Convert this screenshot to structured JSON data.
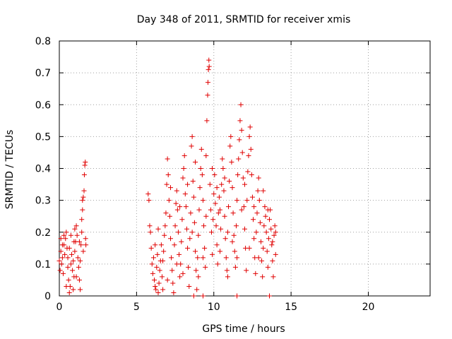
{
  "chart_data": {
    "type": "scatter",
    "title": "Day 348 of 2011, SRMTID for receiver xmis",
    "xlabel": "GPS time / hours",
    "ylabel": "SRMTID / TECUs",
    "xlim": [
      0,
      24
    ],
    "ylim": [
      0,
      0.8
    ],
    "x_ticks": [
      "0",
      "5",
      "10",
      "15",
      "20"
    ],
    "y_ticks": [
      "0",
      "0.1",
      "0.2",
      "0.3",
      "0.4",
      "0.5",
      "0.6",
      "0.7",
      "0.8"
    ],
    "grid": true,
    "marker": "+",
    "color": "#e00000",
    "series": [
      {
        "points": [
          [
            0.0,
            0.11
          ],
          [
            0.05,
            0.08
          ],
          [
            0.1,
            0.14
          ],
          [
            0.15,
            0.1
          ],
          [
            0.2,
            0.12
          ],
          [
            0.25,
            0.07
          ],
          [
            0.3,
            0.16
          ],
          [
            0.35,
            0.13
          ],
          [
            0.4,
            0.18
          ],
          [
            0.45,
            0.2
          ],
          [
            0.5,
            0.15
          ],
          [
            0.55,
            0.12
          ],
          [
            0.6,
            0.05
          ],
          [
            0.65,
            0.01
          ],
          [
            0.7,
            0.03
          ],
          [
            0.75,
            0.1
          ],
          [
            0.8,
            0.13
          ],
          [
            0.85,
            0.08
          ],
          [
            0.9,
            0.11
          ],
          [
            0.95,
            0.06
          ],
          [
            1.0,
            0.14
          ],
          [
            1.05,
            0.17
          ],
          [
            1.1,
            0.22
          ],
          [
            1.15,
            0.19
          ],
          [
            1.2,
            0.12
          ],
          [
            1.25,
            0.09
          ],
          [
            1.3,
            0.05
          ],
          [
            1.35,
            0.02
          ],
          [
            1.4,
            0.16
          ],
          [
            1.45,
            0.2
          ],
          [
            1.5,
            0.27
          ],
          [
            1.55,
            0.31
          ],
          [
            1.6,
            0.33
          ],
          [
            1.62,
            0.38
          ],
          [
            1.65,
            0.41
          ],
          [
            1.68,
            0.42
          ],
          [
            1.7,
            0.18
          ],
          [
            1.72,
            0.16
          ],
          [
            0.1,
            0.18
          ],
          [
            0.3,
            0.19
          ],
          [
            0.55,
            0.09
          ],
          [
            0.75,
            0.19
          ],
          [
            1.1,
            0.06
          ],
          [
            1.3,
            0.17
          ],
          [
            1.5,
            0.3
          ],
          [
            0.2,
            0.16
          ],
          [
            0.45,
            0.03
          ],
          [
            0.9,
            0.02
          ],
          [
            1.0,
            0.21
          ],
          [
            1.45,
            0.24
          ],
          [
            1.55,
            0.14
          ],
          [
            0.65,
            0.15
          ],
          [
            0.95,
            0.17
          ],
          [
            1.35,
            0.11
          ],
          [
            5.75,
            0.32
          ],
          [
            5.8,
            0.3
          ],
          [
            5.85,
            0.22
          ],
          [
            5.9,
            0.2
          ],
          [
            5.95,
            0.15
          ],
          [
            6.0,
            0.1
          ],
          [
            6.05,
            0.07
          ],
          [
            6.1,
            0.12
          ],
          [
            6.15,
            0.05
          ],
          [
            6.2,
            0.03
          ],
          [
            6.25,
            0.02
          ],
          [
            6.3,
            0.09
          ],
          [
            6.35,
            0.13
          ],
          [
            6.4,
            0.01
          ],
          [
            6.45,
            0.04
          ],
          [
            6.5,
            0.08
          ],
          [
            6.55,
            0.11
          ],
          [
            6.6,
            0.16
          ],
          [
            6.65,
            0.06
          ],
          [
            6.7,
            0.02
          ],
          [
            6.75,
            0.14
          ],
          [
            6.8,
            0.19
          ],
          [
            6.85,
            0.22
          ],
          [
            6.9,
            0.26
          ],
          [
            6.95,
            0.35
          ],
          [
            7.0,
            0.43
          ],
          [
            7.05,
            0.38
          ],
          [
            7.1,
            0.3
          ],
          [
            7.15,
            0.25
          ],
          [
            7.2,
            0.18
          ],
          [
            7.25,
            0.12
          ],
          [
            7.3,
            0.08
          ],
          [
            7.35,
            0.04
          ],
          [
            7.4,
            0.01
          ],
          [
            7.45,
            0.16
          ],
          [
            7.5,
            0.22
          ],
          [
            7.55,
            0.29
          ],
          [
            7.6,
            0.33
          ],
          [
            7.65,
            0.27
          ],
          [
            7.7,
            0.2
          ],
          [
            7.75,
            0.13
          ],
          [
            7.8,
            0.06
          ],
          [
            7.85,
            0.1
          ],
          [
            7.9,
            0.17
          ],
          [
            7.95,
            0.24
          ],
          [
            8.0,
            0.37
          ],
          [
            8.05,
            0.4
          ],
          [
            8.1,
            0.44
          ],
          [
            8.15,
            0.32
          ],
          [
            8.2,
            0.28
          ],
          [
            8.25,
            0.21
          ],
          [
            8.3,
            0.15
          ],
          [
            8.35,
            0.09
          ],
          [
            8.4,
            0.03
          ],
          [
            8.45,
            0.18
          ],
          [
            8.5,
            0.26
          ],
          [
            8.55,
            0.47
          ],
          [
            8.6,
            0.5
          ],
          [
            8.65,
            0.36
          ],
          [
            8.7,
            0.31
          ],
          [
            8.75,
            0.23
          ],
          [
            8.8,
            0.14
          ],
          [
            8.85,
            0.08
          ],
          [
            8.9,
            0.02
          ],
          [
            8.95,
            0.12
          ],
          [
            9.0,
            0.19
          ],
          [
            9.05,
            0.27
          ],
          [
            9.1,
            0.34
          ],
          [
            9.15,
            0.4
          ],
          [
            9.2,
            0.46
          ],
          [
            9.25,
            0.38
          ],
          [
            9.3,
            0.3
          ],
          [
            9.35,
            0.22
          ],
          [
            9.4,
            0.15
          ],
          [
            9.45,
            0.09
          ],
          [
            9.5,
            0.44
          ],
          [
            9.55,
            0.55
          ],
          [
            9.6,
            0.63
          ],
          [
            9.62,
            0.67
          ],
          [
            9.65,
            0.71
          ],
          [
            9.68,
            0.74
          ],
          [
            9.7,
            0.72
          ],
          [
            9.75,
            0.35
          ],
          [
            9.8,
            0.27
          ],
          [
            9.85,
            0.2
          ],
          [
            9.9,
            0.13
          ],
          [
            9.95,
            0.24
          ],
          [
            10.0,
            0.32
          ],
          [
            10.05,
            0.38
          ],
          [
            10.1,
            0.29
          ],
          [
            10.15,
            0.22
          ],
          [
            10.2,
            0.16
          ],
          [
            10.25,
            0.1
          ],
          [
            10.3,
            0.26
          ],
          [
            10.35,
            0.31
          ],
          [
            10.4,
            0.27
          ],
          [
            10.45,
            0.21
          ],
          [
            10.5,
            0.35
          ],
          [
            10.55,
            0.43
          ],
          [
            10.6,
            0.4
          ],
          [
            10.65,
            0.33
          ],
          [
            10.7,
            0.25
          ],
          [
            10.75,
            0.18
          ],
          [
            10.8,
            0.12
          ],
          [
            10.85,
            0.08
          ],
          [
            10.9,
            0.2
          ],
          [
            10.95,
            0.28
          ],
          [
            11.0,
            0.36
          ],
          [
            11.05,
            0.47
          ],
          [
            11.1,
            0.5
          ],
          [
            11.15,
            0.42
          ],
          [
            11.2,
            0.34
          ],
          [
            11.25,
            0.26
          ],
          [
            11.3,
            0.19
          ],
          [
            11.35,
            0.14
          ],
          [
            11.4,
            0.09
          ],
          [
            11.45,
            0.22
          ],
          [
            11.5,
            0.3
          ],
          [
            11.55,
            0.38
          ],
          [
            11.6,
            0.43
          ],
          [
            11.65,
            0.49
          ],
          [
            11.7,
            0.55
          ],
          [
            11.75,
            0.6
          ],
          [
            11.8,
            0.52
          ],
          [
            11.85,
            0.45
          ],
          [
            11.9,
            0.37
          ],
          [
            11.95,
            0.28
          ],
          [
            12.0,
            0.21
          ],
          [
            12.05,
            0.15
          ],
          [
            12.1,
            0.08
          ],
          [
            12.15,
            0.3
          ],
          [
            12.2,
            0.39
          ],
          [
            12.25,
            0.44
          ],
          [
            12.3,
            0.5
          ],
          [
            12.35,
            0.53
          ],
          [
            12.4,
            0.46
          ],
          [
            12.45,
            0.38
          ],
          [
            12.5,
            0.31
          ],
          [
            12.55,
            0.24
          ],
          [
            12.6,
            0.18
          ],
          [
            12.65,
            0.12
          ],
          [
            12.7,
            0.07
          ],
          [
            12.75,
            0.2
          ],
          [
            12.8,
            0.26
          ],
          [
            12.85,
            0.33
          ],
          [
            12.9,
            0.37
          ],
          [
            12.95,
            0.3
          ],
          [
            13.0,
            0.23
          ],
          [
            13.05,
            0.17
          ],
          [
            13.1,
            0.11
          ],
          [
            13.15,
            0.06
          ],
          [
            13.2,
            0.15
          ],
          [
            13.25,
            0.22
          ],
          [
            13.3,
            0.28
          ],
          [
            13.35,
            0.25
          ],
          [
            13.4,
            0.2
          ],
          [
            13.45,
            0.14
          ],
          [
            13.5,
            0.09
          ],
          [
            13.55,
            0.18
          ],
          [
            13.6,
            0.24
          ],
          [
            13.65,
            0.27
          ],
          [
            13.7,
            0.21
          ],
          [
            13.75,
            0.16
          ],
          [
            13.8,
            0.11
          ],
          [
            13.85,
            0.06
          ],
          [
            13.9,
            0.19
          ],
          [
            13.95,
            0.22
          ],
          [
            14.0,
            0.2
          ],
          [
            6.2,
            0.16
          ],
          [
            6.4,
            0.21
          ],
          [
            6.7,
            0.11
          ],
          [
            7.0,
            0.05
          ],
          [
            7.2,
            0.34
          ],
          [
            7.6,
            0.1
          ],
          [
            7.8,
            0.28
          ],
          [
            8.0,
            0.07
          ],
          [
            8.3,
            0.35
          ],
          [
            8.6,
            0.2
          ],
          [
            8.8,
            0.42
          ],
          [
            9.0,
            0.06
          ],
          [
            9.3,
            0.12
          ],
          [
            9.5,
            0.25
          ],
          [
            9.9,
            0.4
          ],
          [
            10.2,
            0.34
          ],
          [
            10.4,
            0.14
          ],
          [
            10.7,
            0.37
          ],
          [
            10.9,
            0.06
          ],
          [
            11.2,
            0.17
          ],
          [
            11.5,
            0.12
          ],
          [
            11.8,
            0.27
          ],
          [
            12.0,
            0.35
          ],
          [
            12.3,
            0.15
          ],
          [
            12.6,
            0.28
          ],
          [
            12.9,
            0.12
          ],
          [
            13.2,
            0.33
          ],
          [
            13.5,
            0.27
          ],
          [
            13.8,
            0.17
          ],
          [
            14.0,
            0.13
          ],
          [
            8.7,
            0.0
          ],
          [
            9.3,
            0.0
          ],
          [
            11.5,
            0.0
          ],
          [
            13.6,
            0.0
          ]
        ]
      }
    ]
  }
}
